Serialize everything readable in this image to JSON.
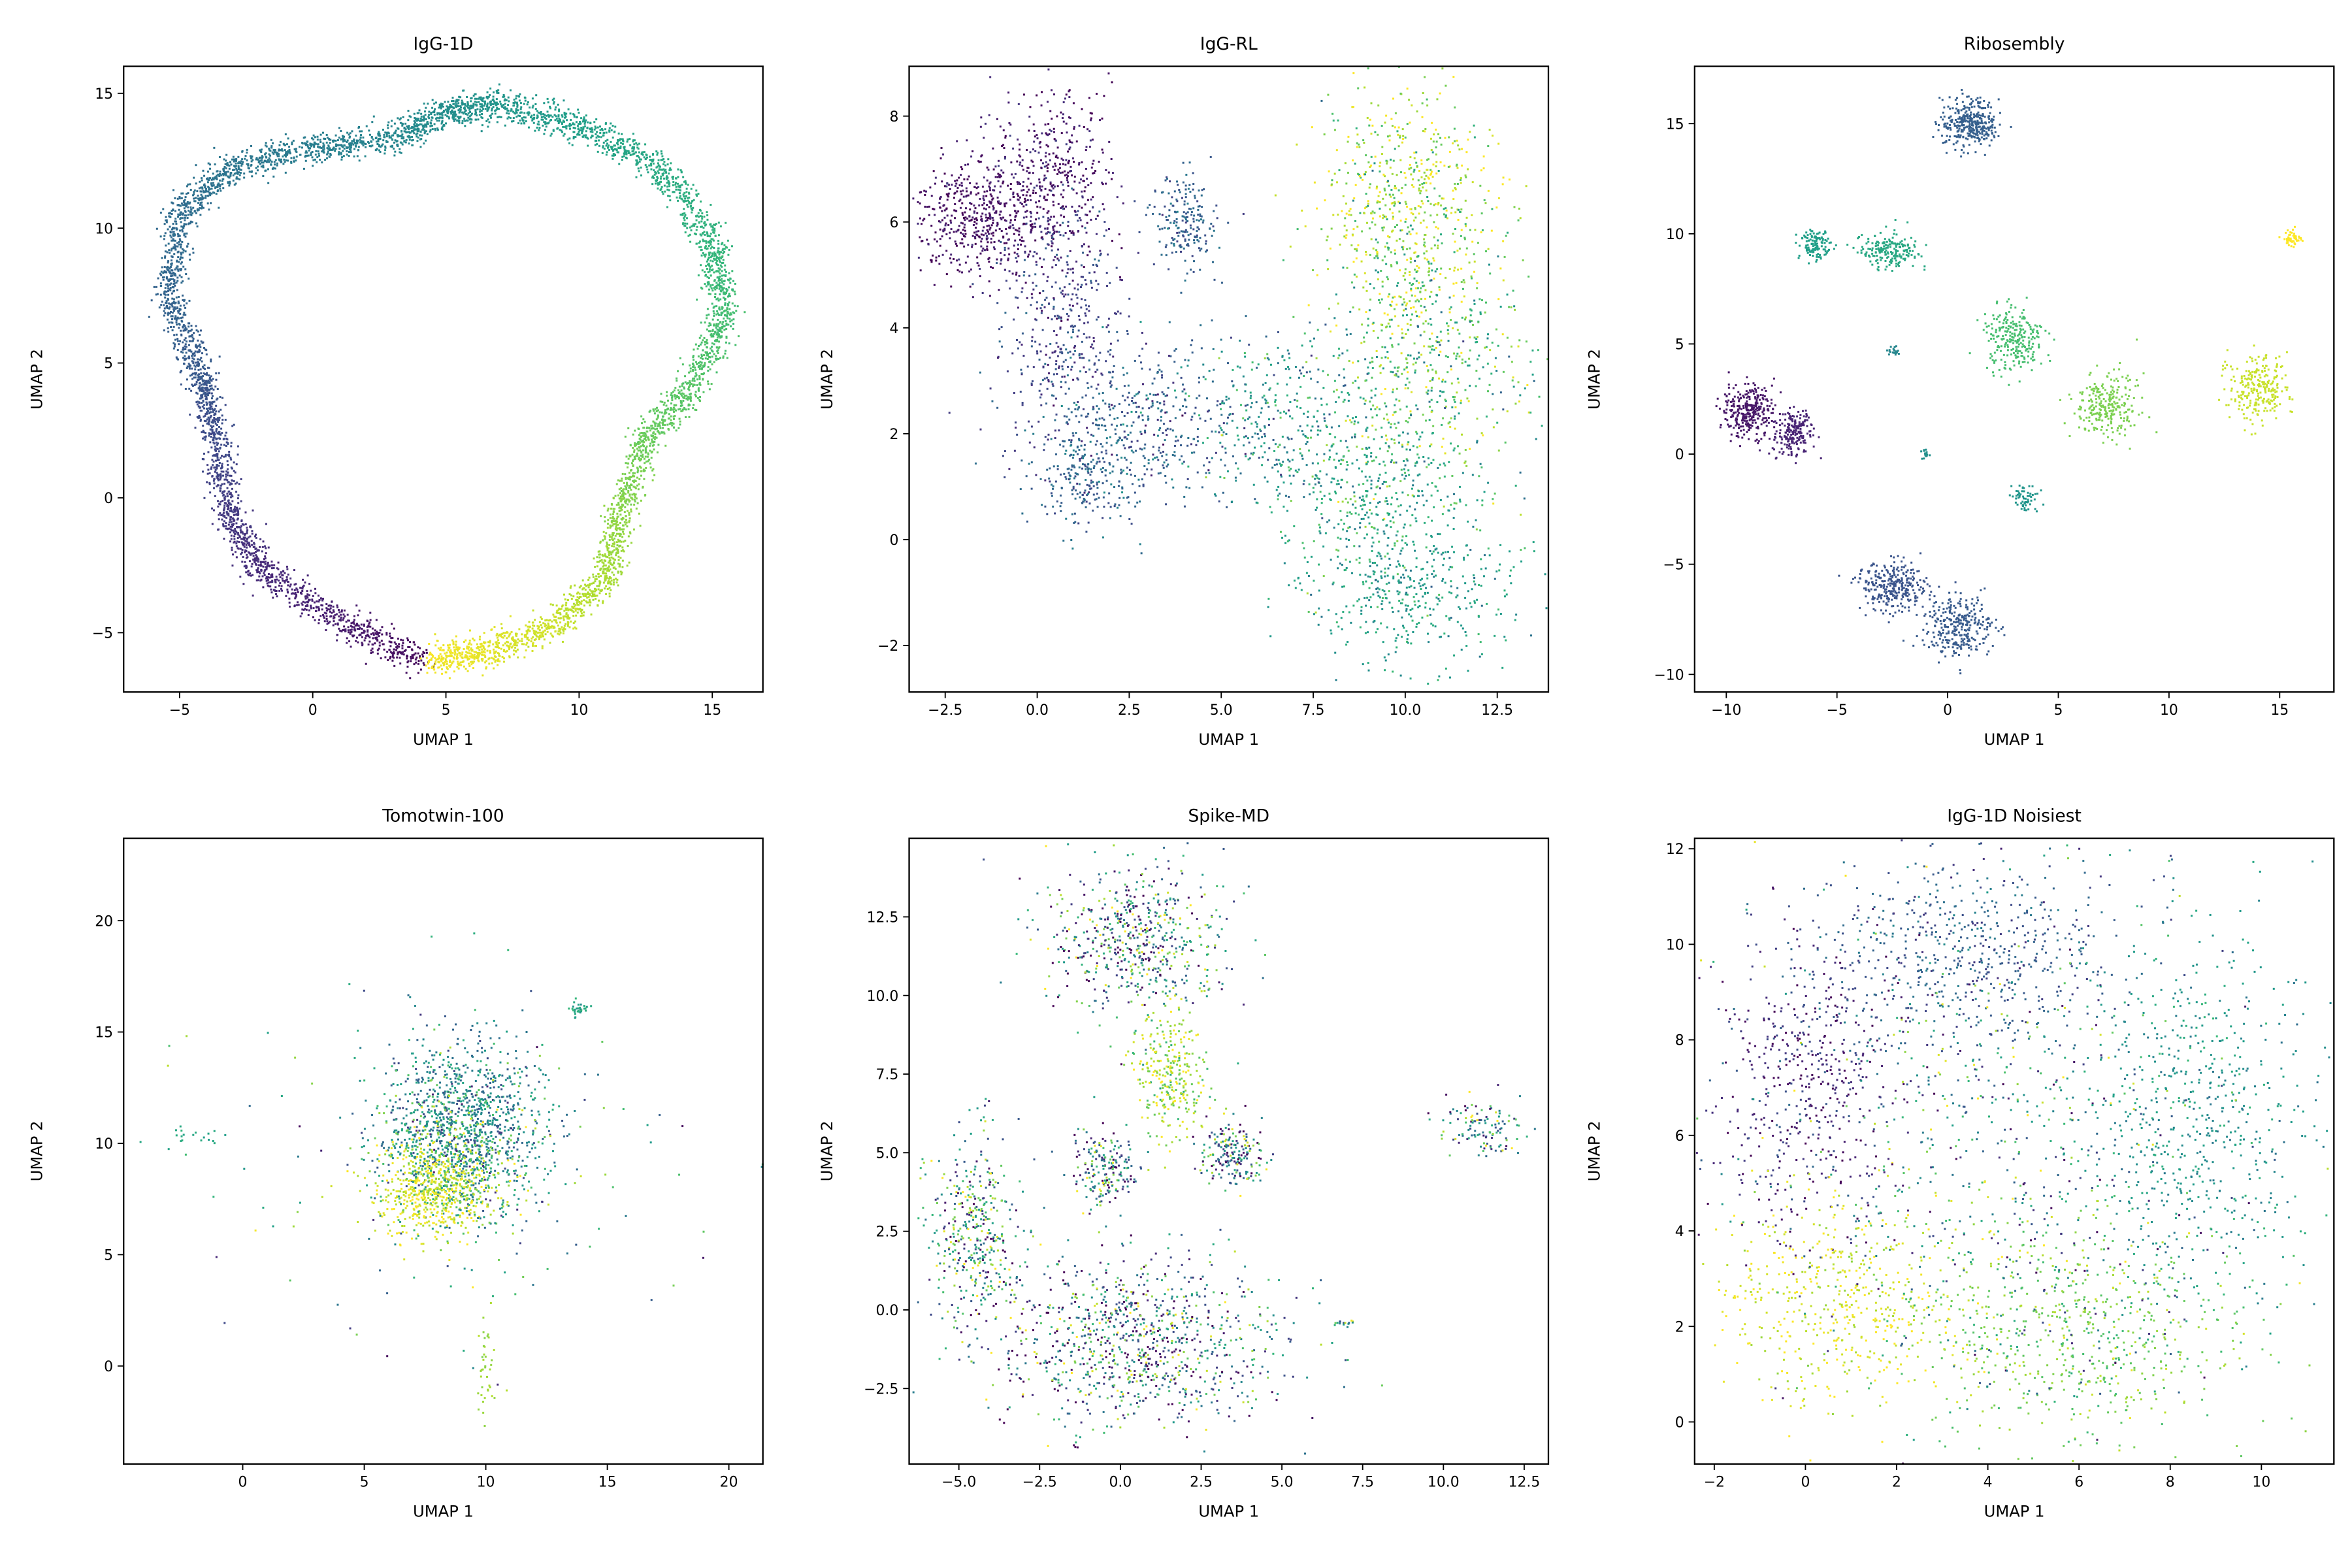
{
  "colormap": "viridis",
  "chart_data": [
    {
      "type": "scatter",
      "title": "IgG-1D",
      "xlabel": "UMAP 1",
      "ylabel": "UMAP 2",
      "xlim": [
        -7.1,
        16.9
      ],
      "ylim": [
        -7.2,
        16.0
      ],
      "xticks": [
        -5,
        0,
        5,
        10,
        15
      ],
      "xtick_labels": [
        "−5",
        "0",
        "5",
        "10",
        "15"
      ],
      "yticks": [
        -5,
        0,
        5,
        10,
        15
      ],
      "ytick_labels": [
        "−5",
        "0",
        "5",
        "10",
        "15"
      ],
      "grid": false,
      "ring_path": [
        [
          4,
          -6,
          0.02
        ],
        [
          1,
          -4.6,
          0.08
        ],
        [
          -2,
          -2.6,
          0.12
        ],
        [
          -3.2,
          -0.5,
          0.17
        ],
        [
          -3.7,
          2.5,
          0.23
        ],
        [
          -4.3,
          4.7,
          0.28
        ],
        [
          -5.4,
          7.5,
          0.32
        ],
        [
          -5,
          10.5,
          0.35
        ],
        [
          -3,
          12.3,
          0.39
        ],
        [
          0,
          13,
          0.42
        ],
        [
          3,
          13.3,
          0.46
        ],
        [
          5,
          14.3,
          0.49
        ],
        [
          7,
          14.6,
          0.52
        ],
        [
          10,
          13.8,
          0.56
        ],
        [
          13,
          12.3,
          0.6
        ],
        [
          15,
          9.5,
          0.65
        ],
        [
          15.5,
          7,
          0.69
        ],
        [
          14.3,
          4.2,
          0.73
        ],
        [
          12.5,
          2.2,
          0.77
        ],
        [
          11.6,
          -0.5,
          0.82
        ],
        [
          11,
          -3,
          0.87
        ],
        [
          9,
          -4.8,
          0.92
        ],
        [
          6.5,
          -5.7,
          0.96
        ],
        [
          4.5,
          -6,
          0.99
        ]
      ]
    },
    {
      "type": "scatter",
      "title": "IgG-RL",
      "xlabel": "UMAP 1",
      "ylabel": "UMAP 2",
      "xlim": [
        -3.48,
        13.89
      ],
      "ylim": [
        -2.88,
        8.94
      ],
      "xticks": [
        -2.5,
        0,
        2.5,
        5,
        7.5,
        10,
        12.5
      ],
      "xtick_labels": [
        "−2.5",
        "0.0",
        "2.5",
        "5.0",
        "7.5",
        "10.0",
        "12.5"
      ],
      "yticks": [
        -2,
        0,
        2,
        4,
        6,
        8
      ],
      "ytick_labels": [
        "−2",
        "0",
        "2",
        "4",
        "6",
        "8"
      ],
      "grid": false,
      "clusters": [
        [
          -1.6,
          6.1,
          0.9,
          0.55,
          0.04,
          0.05,
          500
        ],
        [
          0.4,
          6.9,
          0.8,
          0.8,
          0.06,
          0.06,
          400
        ],
        [
          0.6,
          4.2,
          0.9,
          1.2,
          0.2,
          0.08,
          400
        ],
        [
          4,
          6,
          0.45,
          0.45,
          0.3,
          0.06,
          200
        ],
        [
          2.7,
          2.2,
          1.4,
          0.8,
          0.3,
          0.1,
          450
        ],
        [
          1.2,
          1.2,
          0.7,
          0.5,
          0.33,
          0.06,
          200
        ],
        [
          10,
          6.3,
          1.2,
          1.1,
          0.88,
          0.15,
          600
        ],
        [
          10.5,
          3.3,
          1.4,
          1.4,
          0.72,
          0.18,
          600
        ],
        [
          9,
          1,
          1.2,
          1,
          0.6,
          0.12,
          400
        ],
        [
          10.2,
          -1,
          1.4,
          0.7,
          0.55,
          0.08,
          400
        ],
        [
          6.5,
          2.2,
          1.1,
          0.9,
          0.5,
          0.15,
          300
        ]
      ]
    },
    {
      "type": "scatter",
      "title": "Ribosembly",
      "xlabel": "UMAP 1",
      "ylabel": "UMAP 2",
      "xlim": [
        -11.43,
        17.45
      ],
      "ylim": [
        -10.8,
        17.6
      ],
      "xticks": [
        -10,
        -5,
        0,
        5,
        10,
        15
      ],
      "xtick_labels": [
        "−10",
        "−5",
        "0",
        "5",
        "10",
        "15"
      ],
      "yticks": [
        -10,
        -5,
        0,
        5,
        10,
        15
      ],
      "ytick_labels": [
        "−10",
        "−5",
        "0",
        "5",
        "10",
        "15"
      ],
      "grid": false,
      "clusters": [
        [
          1,
          15,
          0.65,
          0.55,
          0.3,
          0,
          350
        ],
        [
          -6,
          9.5,
          0.35,
          0.3,
          0.56,
          0,
          120
        ],
        [
          -2.6,
          9.2,
          0.65,
          0.4,
          0.6,
          0,
          200
        ],
        [
          15.6,
          9.8,
          0.2,
          0.2,
          1.0,
          0,
          50
        ],
        [
          -2.5,
          4.7,
          0.12,
          0.12,
          0.46,
          0,
          20
        ],
        [
          3,
          5.2,
          0.7,
          0.7,
          0.7,
          0,
          250
        ],
        [
          7.2,
          2.2,
          0.7,
          0.7,
          0.8,
          0,
          250
        ],
        [
          14,
          3,
          0.65,
          0.75,
          0.92,
          0,
          250
        ],
        [
          -9,
          2,
          0.6,
          0.6,
          0.06,
          0,
          300
        ],
        [
          -7,
          1,
          0.45,
          0.55,
          0.1,
          0,
          200
        ],
        [
          -1,
          0,
          0.12,
          0.12,
          0.5,
          0,
          20
        ],
        [
          3.5,
          -2,
          0.3,
          0.35,
          0.52,
          0,
          60
        ],
        [
          -2.5,
          -6,
          0.8,
          0.55,
          0.26,
          0,
          300
        ],
        [
          0.5,
          -7.8,
          0.8,
          0.7,
          0.28,
          0,
          300
        ]
      ]
    },
    {
      "type": "scatter",
      "title": "Tomotwin-100",
      "xlabel": "UMAP 1",
      "ylabel": "UMAP 2",
      "xlim": [
        -4.9,
        21.4
      ],
      "ylim": [
        -4.4,
        23.7
      ],
      "xticks": [
        0,
        5,
        10,
        15,
        20
      ],
      "xtick_labels": [
        "0",
        "5",
        "10",
        "15",
        "20"
      ],
      "yticks": [
        0,
        5,
        10,
        15,
        20
      ],
      "ytick_labels": [
        "0",
        "5",
        "10",
        "15",
        "20"
      ],
      "grid": false,
      "clusters": [
        [
          9,
          10.8,
          1.7,
          1.9,
          0.45,
          0.15,
          1100
        ],
        [
          7.8,
          7.8,
          1.1,
          1,
          0.95,
          0.05,
          500
        ],
        [
          8.5,
          9,
          1.5,
          1.5,
          0.75,
          0.2,
          400
        ],
        [
          13.8,
          16,
          0.25,
          0.2,
          0.6,
          0.05,
          30
        ],
        [
          10,
          0,
          0.2,
          1.2,
          0.85,
          0.02,
          40
        ],
        [
          -2,
          10.3,
          0.8,
          0.2,
          0.6,
          0.02,
          20
        ],
        [
          9,
          9,
          5,
          4,
          0.6,
          0.25,
          150
        ]
      ]
    },
    {
      "type": "scatter",
      "title": "Spike-MD",
      "xlabel": "UMAP 1",
      "ylabel": "UMAP 2",
      "xlim": [
        -6.54,
        13.25
      ],
      "ylim": [
        -4.9,
        15.0
      ],
      "xticks": [
        -5,
        -2.5,
        0,
        2.5,
        5,
        7.5,
        10,
        12.5
      ],
      "xtick_labels": [
        "−5.0",
        "−2.5",
        "0.0",
        "2.5",
        "5.0",
        "7.5",
        "10.0",
        "12.5"
      ],
      "yticks": [
        -2.5,
        0,
        2.5,
        5,
        7.5,
        10,
        12.5
      ],
      "ytick_labels": [
        "−2.5",
        "0.0",
        "2.5",
        "5.0",
        "7.5",
        "10.0",
        "12.5"
      ],
      "grid": false,
      "clusters": [
        [
          0.5,
          11.8,
          1.4,
          1.2,
          0.4,
          0.35,
          600
        ],
        [
          1.5,
          7.5,
          0.6,
          1,
          0.85,
          0.12,
          300
        ],
        [
          -0.5,
          4.5,
          0.55,
          0.6,
          0.35,
          0.3,
          200
        ],
        [
          3.5,
          5,
          0.45,
          0.55,
          0.3,
          0.3,
          200
        ],
        [
          -4.5,
          2.5,
          0.7,
          1.5,
          0.5,
          0.35,
          400
        ],
        [
          0.5,
          -1,
          2.3,
          1.4,
          0.35,
          0.35,
          1000
        ],
        [
          11.2,
          5.8,
          0.6,
          0.5,
          0.5,
          0.3,
          120
        ],
        [
          7,
          -0.4,
          0.2,
          0.08,
          0.4,
          0.3,
          15
        ]
      ]
    },
    {
      "type": "scatter",
      "title": "IgG-1D Noisiest",
      "xlabel": "UMAP 1",
      "ylabel": "UMAP 2",
      "xlim": [
        -2.43,
        11.59
      ],
      "ylim": [
        -0.88,
        12.22
      ],
      "xticks": [
        -2,
        0,
        2,
        4,
        6,
        8,
        10
      ],
      "xtick_labels": [
        "−2",
        "0",
        "2",
        "4",
        "6",
        "8",
        "10"
      ],
      "yticks": [
        0,
        2,
        4,
        6,
        8,
        10,
        12
      ],
      "ytick_labels": [
        "0",
        "2",
        "4",
        "6",
        "8",
        "10",
        "12"
      ],
      "grid": false,
      "clusters": [
        [
          0,
          7,
          1,
          1.5,
          0.12,
          0.1,
          500
        ],
        [
          3.5,
          9.8,
          1.8,
          1,
          0.3,
          0.08,
          600
        ],
        [
          8.5,
          6.5,
          1.3,
          1.8,
          0.52,
          0.08,
          600
        ],
        [
          6,
          1.8,
          1.8,
          1.1,
          0.78,
          0.08,
          600
        ],
        [
          0.8,
          2.5,
          1.3,
          1.1,
          0.95,
          0.06,
          500
        ],
        [
          4.5,
          5.5,
          2.8,
          2.7,
          0.5,
          0.25,
          800
        ]
      ]
    }
  ]
}
